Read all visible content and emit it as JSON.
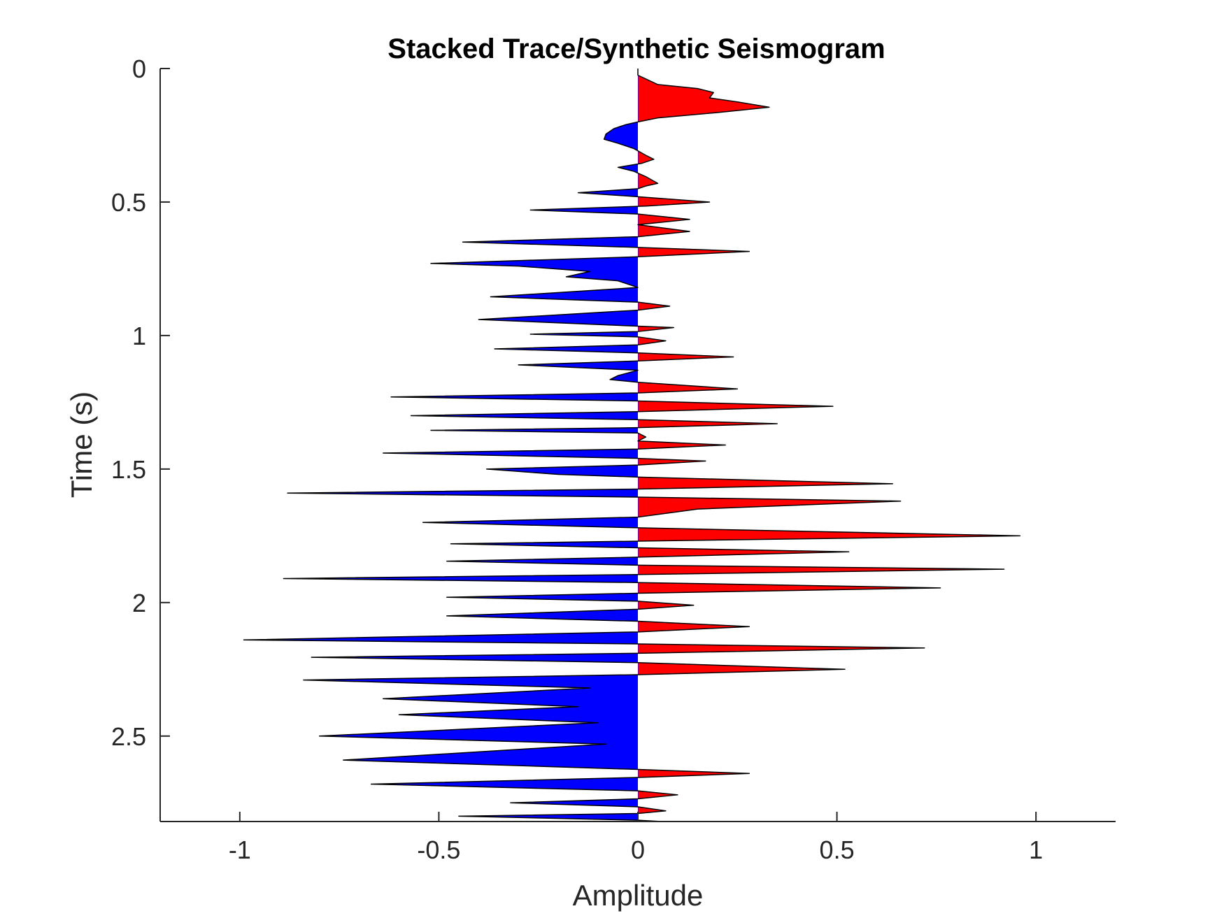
{
  "chart_data": {
    "type": "area",
    "title": "Stacked Trace/Synthetic Seismogram",
    "xlabel": "Amplitude",
    "ylabel": "Time (s)",
    "xlim": [
      -1.2,
      1.2
    ],
    "ylim": [
      0,
      2.82
    ],
    "y_reversed": true,
    "xticks": [
      -1,
      -0.5,
      0,
      0.5,
      1
    ],
    "xtick_labels": [
      "-1",
      "-0.5",
      "0",
      "0.5",
      "1"
    ],
    "yticks": [
      0,
      0.5,
      1,
      1.5,
      2,
      2.5
    ],
    "ytick_labels": [
      "0",
      "0.5",
      "1",
      "1.5",
      "2",
      "2.5"
    ],
    "grid": false,
    "positive_fill_color": "#ff0000",
    "negative_fill_color": "#0000ff",
    "line_color": "#000000",
    "series": [
      {
        "points": [
          [
            0.0,
            0.0
          ],
          [
            0.0,
            0.025
          ],
          [
            0.05,
            0.06
          ],
          [
            0.15,
            0.075
          ],
          [
            0.19,
            0.09
          ],
          [
            0.18,
            0.11
          ],
          [
            0.25,
            0.125
          ],
          [
            0.33,
            0.145
          ],
          [
            0.2,
            0.165
          ],
          [
            0.05,
            0.185
          ],
          [
            0.0,
            0.2
          ],
          [
            -0.03,
            0.21
          ],
          [
            -0.06,
            0.225
          ],
          [
            -0.08,
            0.245
          ],
          [
            -0.085,
            0.265
          ],
          [
            -0.05,
            0.28
          ],
          [
            -0.01,
            0.3
          ],
          [
            0.02,
            0.325
          ],
          [
            0.04,
            0.34
          ],
          [
            0.01,
            0.355
          ],
          [
            -0.05,
            0.37
          ],
          [
            -0.01,
            0.385
          ],
          [
            0.02,
            0.405
          ],
          [
            0.05,
            0.43
          ],
          [
            0.02,
            0.44
          ],
          [
            0.0,
            0.45
          ],
          [
            -0.15,
            0.465
          ],
          [
            0.0,
            0.48
          ],
          [
            0.18,
            0.5
          ],
          [
            0.02,
            0.515
          ],
          [
            -0.27,
            0.53
          ],
          [
            0.0,
            0.545
          ],
          [
            0.13,
            0.565
          ],
          [
            0.0,
            0.585
          ],
          [
            0.13,
            0.61
          ],
          [
            0.0,
            0.63
          ],
          [
            -0.44,
            0.65
          ],
          [
            0.0,
            0.67
          ],
          [
            0.28,
            0.685
          ],
          [
            0.0,
            0.705
          ],
          [
            -0.52,
            0.73
          ],
          [
            -0.3,
            0.74
          ],
          [
            -0.12,
            0.76
          ],
          [
            -0.18,
            0.78
          ],
          [
            -0.05,
            0.795
          ],
          [
            0.0,
            0.82
          ],
          [
            -0.37,
            0.855
          ],
          [
            0.0,
            0.875
          ],
          [
            0.08,
            0.89
          ],
          [
            0.0,
            0.905
          ],
          [
            -0.4,
            0.94
          ],
          [
            0.0,
            0.965
          ],
          [
            0.09,
            0.97
          ],
          [
            0.0,
            0.985
          ],
          [
            -0.27,
            0.995
          ],
          [
            0.0,
            1.005
          ],
          [
            0.07,
            1.02
          ],
          [
            0.0,
            1.035
          ],
          [
            -0.36,
            1.05
          ],
          [
            0.0,
            1.065
          ],
          [
            0.24,
            1.08
          ],
          [
            0.0,
            1.095
          ],
          [
            -0.3,
            1.11
          ],
          [
            0.0,
            1.13
          ],
          [
            -0.05,
            1.15
          ],
          [
            -0.07,
            1.165
          ],
          [
            0.0,
            1.175
          ],
          [
            0.25,
            1.2
          ],
          [
            0.0,
            1.215
          ],
          [
            -0.62,
            1.23
          ],
          [
            0.0,
            1.245
          ],
          [
            0.49,
            1.265
          ],
          [
            0.0,
            1.285
          ],
          [
            -0.57,
            1.3
          ],
          [
            0.0,
            1.315
          ],
          [
            0.35,
            1.33
          ],
          [
            0.0,
            1.345
          ],
          [
            -0.52,
            1.355
          ],
          [
            0.0,
            1.365
          ],
          [
            0.02,
            1.38
          ],
          [
            0.0,
            1.395
          ],
          [
            0.22,
            1.41
          ],
          [
            0.0,
            1.425
          ],
          [
            -0.64,
            1.44
          ],
          [
            0.0,
            1.46
          ],
          [
            0.17,
            1.47
          ],
          [
            0.0,
            1.485
          ],
          [
            -0.38,
            1.5
          ],
          [
            -0.2,
            1.52
          ],
          [
            0.0,
            1.53
          ],
          [
            0.64,
            1.555
          ],
          [
            0.0,
            1.575
          ],
          [
            -0.88,
            1.59
          ],
          [
            0.0,
            1.605
          ],
          [
            0.66,
            1.62
          ],
          [
            0.15,
            1.65
          ],
          [
            0.0,
            1.68
          ],
          [
            -0.54,
            1.7
          ],
          [
            0.0,
            1.72
          ],
          [
            0.96,
            1.75
          ],
          [
            0.0,
            1.77
          ],
          [
            -0.47,
            1.78
          ],
          [
            0.0,
            1.795
          ],
          [
            0.53,
            1.81
          ],
          [
            0.0,
            1.83
          ],
          [
            -0.48,
            1.845
          ],
          [
            0.0,
            1.86
          ],
          [
            0.92,
            1.875
          ],
          [
            0.0,
            1.895
          ],
          [
            -0.89,
            1.91
          ],
          [
            0.0,
            1.925
          ],
          [
            0.76,
            1.945
          ],
          [
            0.0,
            1.965
          ],
          [
            -0.48,
            1.98
          ],
          [
            0.0,
            1.995
          ],
          [
            0.14,
            2.01
          ],
          [
            0.0,
            2.025
          ],
          [
            -0.48,
            2.05
          ],
          [
            0.0,
            2.07
          ],
          [
            0.28,
            2.09
          ],
          [
            0.0,
            2.11
          ],
          [
            -0.99,
            2.14
          ],
          [
            0.0,
            2.155
          ],
          [
            0.72,
            2.17
          ],
          [
            0.0,
            2.19
          ],
          [
            -0.82,
            2.205
          ],
          [
            0.0,
            2.225
          ],
          [
            0.52,
            2.25
          ],
          [
            0.0,
            2.27
          ],
          [
            -0.84,
            2.29
          ],
          [
            -0.12,
            2.32
          ],
          [
            -0.64,
            2.36
          ],
          [
            -0.15,
            2.39
          ],
          [
            -0.6,
            2.42
          ],
          [
            -0.1,
            2.45
          ],
          [
            -0.8,
            2.5
          ],
          [
            -0.08,
            2.53
          ],
          [
            -0.74,
            2.59
          ],
          [
            0.0,
            2.625
          ],
          [
            0.28,
            2.64
          ],
          [
            0.0,
            2.655
          ],
          [
            -0.67,
            2.68
          ],
          [
            0.0,
            2.705
          ],
          [
            0.1,
            2.72
          ],
          [
            0.0,
            2.735
          ],
          [
            -0.32,
            2.75
          ],
          [
            0.0,
            2.765
          ],
          [
            0.07,
            2.78
          ],
          [
            0.0,
            2.79
          ],
          [
            -0.45,
            2.8
          ],
          [
            0.0,
            2.815
          ],
          [
            0.06,
            2.82
          ]
        ]
      }
    ]
  }
}
